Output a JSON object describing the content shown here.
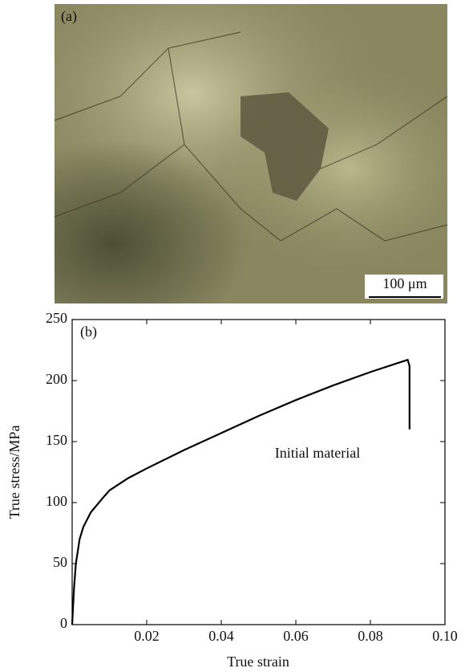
{
  "panel_a": {
    "label": "(a)",
    "scale_bar": "100 μm"
  },
  "chart_data": {
    "type": "line",
    "panel_label": "(b)",
    "xlabel": "True strain",
    "ylabel": "True stress/MPa",
    "annotation": "Initial material",
    "xlim": [
      0,
      0.1
    ],
    "ylim": [
      0,
      250
    ],
    "xticks": [
      0.02,
      0.04,
      0.06,
      0.08,
      {
        "value": 0.1,
        "label": "0.10"
      }
    ],
    "yticks": [
      0,
      50,
      100,
      150,
      200,
      250
    ],
    "series": [
      {
        "color": "#000000",
        "x": [
          0,
          0.0005,
          0.001,
          0.002,
          0.003,
          0.005,
          0.008,
          0.01,
          0.015,
          0.02,
          0.03,
          0.04,
          0.05,
          0.06,
          0.07,
          0.08,
          0.088,
          0.09,
          0.0905,
          0.0905
        ],
        "values": [
          0,
          30,
          50,
          70,
          80,
          92,
          103,
          110,
          120,
          128,
          143,
          157,
          171,
          184,
          196,
          207,
          215,
          217,
          212,
          160
        ]
      }
    ]
  }
}
